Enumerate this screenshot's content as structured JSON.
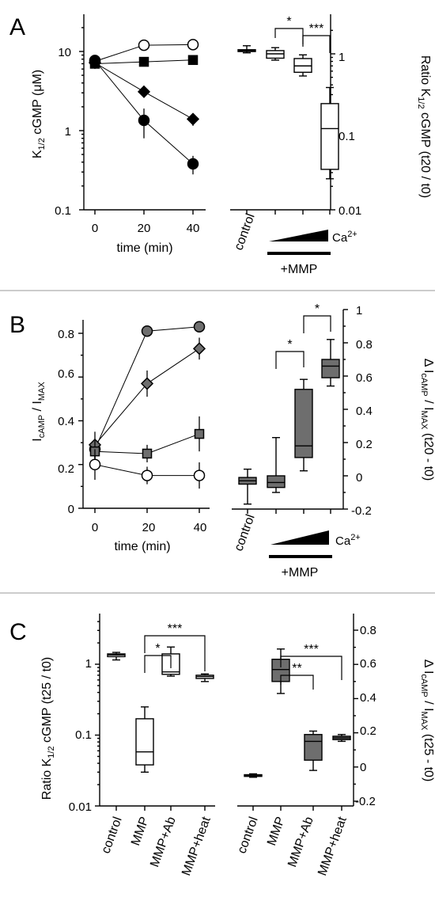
{
  "panels": {
    "A": {
      "letter": "A",
      "left": {
        "ylabel_main": "K",
        "ylabel_sub": "1/2",
        "ylabel_rest": " cGMP (μM)",
        "xlabel": "time (min)",
        "yticks": [
          "0.1",
          "1",
          "10"
        ],
        "xticks": [
          "0",
          "20",
          "40"
        ]
      },
      "right": {
        "ylabel_main": "Ratio K",
        "ylabel_sub": "1/2",
        "ylabel_rest": " cGMP (t20 / t0)",
        "yticks": [
          "0.01",
          "0.1",
          "1"
        ],
        "cat_control": "control",
        "ca_label": "Ca",
        "ca_sup": "2+",
        "mmp_label": "+MMP",
        "sig": [
          "*",
          "***"
        ]
      }
    },
    "B": {
      "letter": "B",
      "left": {
        "ylabel_main": "I",
        "ylabel_sub1": "cAMP",
        "ylabel_mid": " / I",
        "ylabel_sub2": "MAX",
        "xlabel": "time (min)",
        "yticks": [
          "0",
          "0.2",
          "0.4",
          "0.6",
          "0.8"
        ],
        "xticks": [
          "0",
          "20",
          "40"
        ]
      },
      "right": {
        "ylabel_main": "Δ I",
        "ylabel_sub1": "cAMP",
        "ylabel_mid": " / I",
        "ylabel_sub2": "MAX",
        "ylabel_rest": " (t20 - t0)",
        "yticks": [
          "-0.2",
          "0",
          "0.2",
          "0.4",
          "0.6",
          "0.8",
          "1"
        ],
        "cat_control": "control",
        "ca_label": "Ca",
        "ca_sup": "2+",
        "mmp_label": "+MMP",
        "sig": [
          "*",
          "*"
        ]
      }
    },
    "C": {
      "letter": "C",
      "left": {
        "ylabel_main": "Ratio K",
        "ylabel_sub": "1/2",
        "ylabel_rest": " cGMP (t25 / t0)",
        "yticks": [
          "0.01",
          "0.1",
          "1"
        ],
        "categories": [
          "control",
          "MMP",
          "MMP+Ab",
          "MMP+heat"
        ],
        "sig": [
          "*",
          "***"
        ]
      },
      "right": {
        "ylabel_main": "Δ I",
        "ylabel_sub1": "cAMP",
        "ylabel_mid": " / I",
        "ylabel_sub2": "MAX",
        "ylabel_rest": " (t25 - t0)",
        "yticks": [
          "-0.2",
          "0",
          "0.2",
          "0.4",
          "0.6",
          "0.8"
        ],
        "categories": [
          "control",
          "MMP",
          "MMP+Ab",
          "MMP+heat"
        ],
        "sig": [
          "**",
          "***"
        ]
      }
    }
  },
  "chart_data": [
    {
      "id": "A-left",
      "type": "line",
      "xlabel": "time (min)",
      "ylabel": "K1/2 cGMP (μM)",
      "yscale": "log",
      "ylim": [
        0.1,
        30
      ],
      "xlim": [
        -5,
        48
      ],
      "x": [
        0,
        20,
        40
      ],
      "series": [
        {
          "marker": "open-circle",
          "values": [
            7.5,
            12,
            12.2
          ],
          "err": [
            0.5,
            0.8,
            0.8
          ]
        },
        {
          "marker": "filled-square",
          "values": [
            7,
            7.4,
            7.8
          ],
          "err": [
            0.5,
            0.4,
            0.4
          ]
        },
        {
          "marker": "filled-diamond",
          "values": [
            7.2,
            3.1,
            1.4
          ],
          "err": [
            0.5,
            0.5,
            0.25
          ]
        },
        {
          "marker": "filled-circle",
          "values": [
            7.7,
            1.35,
            0.38
          ],
          "err": [
            0.6,
            0.55,
            0.1
          ]
        }
      ]
    },
    {
      "id": "A-right",
      "type": "box",
      "ylabel": "Ratio K1/2 cGMP (t20 / t0)",
      "yscale": "log",
      "ylim": [
        0.01,
        3.2
      ],
      "categories": [
        "control",
        "+MMP low Ca2+",
        "+MMP mid Ca2+",
        "+MMP high Ca2+"
      ],
      "boxes": [
        {
          "min": 1.03,
          "q1": 1.07,
          "median": 1.1,
          "q3": 1.13,
          "max": 1.27,
          "fill": "white"
        },
        {
          "min": 0.83,
          "q1": 0.88,
          "median": 1.0,
          "q3": 1.1,
          "max": 1.2,
          "fill": "white"
        },
        {
          "min": 0.52,
          "q1": 0.58,
          "median": 0.7,
          "q3": 0.87,
          "max": 0.97,
          "fill": "white"
        },
        {
          "min": 0.025,
          "q1": 0.033,
          "median": 0.11,
          "q3": 0.23,
          "max": 0.37,
          "fill": "white"
        }
      ]
    },
    {
      "id": "B-left",
      "type": "line",
      "xlabel": "time (min)",
      "ylabel": "IcAMP / IMAX",
      "ylim": [
        0,
        0.85
      ],
      "xlim": [
        -5,
        48
      ],
      "x": [
        0,
        20,
        40
      ],
      "series": [
        {
          "marker": "filled-circle-gray",
          "values": [
            0.27,
            0.81,
            0.83
          ],
          "err": [
            0.04,
            0.02,
            0.02
          ]
        },
        {
          "marker": "filled-diamond-gray",
          "values": [
            0.29,
            0.57,
            0.73
          ],
          "err": [
            0.06,
            0.06,
            0.05
          ]
        },
        {
          "marker": "filled-square-gray",
          "values": [
            0.26,
            0.25,
            0.34
          ],
          "err": [
            0.05,
            0.04,
            0.08
          ]
        },
        {
          "marker": "open-circle",
          "values": [
            0.2,
            0.15,
            0.15
          ],
          "err": [
            0.07,
            0.04,
            0.06
          ]
        }
      ]
    },
    {
      "id": "B-right",
      "type": "box",
      "ylabel": "Δ IcAMP / IMAX (t20 - t0)",
      "ylim": [
        -0.2,
        1
      ],
      "categories": [
        "control",
        "+MMP low Ca2+",
        "+MMP mid Ca2+",
        "+MMP high Ca2+"
      ],
      "boxes": [
        {
          "min": -0.17,
          "q1": -0.05,
          "median": -0.03,
          "q3": -0.01,
          "max": 0.04,
          "fill": "gray"
        },
        {
          "min": -0.1,
          "q1": -0.07,
          "median": -0.04,
          "q3": 0.0,
          "max": 0.23,
          "fill": "gray"
        },
        {
          "min": 0.03,
          "q1": 0.11,
          "median": 0.18,
          "q3": 0.52,
          "max": 0.58,
          "fill": "gray"
        },
        {
          "min": 0.54,
          "q1": 0.59,
          "median": 0.66,
          "q3": 0.7,
          "max": 0.82,
          "fill": "gray"
        }
      ]
    },
    {
      "id": "C-left",
      "type": "box",
      "ylabel": "Ratio K1/2 cGMP (t25 / t0)",
      "yscale": "log",
      "ylim": [
        0.01,
        4
      ],
      "categories": [
        "control",
        "MMP",
        "MMP+Ab",
        "MMP+heat"
      ],
      "boxes": [
        {
          "min": 1.15,
          "q1": 1.28,
          "median": 1.35,
          "q3": 1.4,
          "max": 1.47,
          "fill": "white"
        },
        {
          "min": 0.03,
          "q1": 0.038,
          "median": 0.058,
          "q3": 0.17,
          "max": 0.25,
          "fill": "white"
        },
        {
          "min": 0.68,
          "q1": 0.72,
          "median": 0.78,
          "q3": 1.4,
          "max": 1.75,
          "fill": "white"
        },
        {
          "min": 0.57,
          "q1": 0.63,
          "median": 0.67,
          "q3": 0.7,
          "max": 0.73,
          "fill": "white"
        }
      ]
    },
    {
      "id": "C-right",
      "type": "box",
      "ylabel": "Δ IcAMP / IMAX (t25 - t0)",
      "ylim": [
        -0.2,
        0.9
      ],
      "categories": [
        "control",
        "MMP",
        "MMP+Ab",
        "MMP+heat"
      ],
      "boxes": [
        {
          "min": -0.06,
          "q1": -0.055,
          "median": -0.05,
          "q3": -0.045,
          "max": -0.04,
          "fill": "gray"
        },
        {
          "min": 0.43,
          "q1": 0.5,
          "median": 0.57,
          "q3": 0.63,
          "max": 0.69,
          "fill": "gray"
        },
        {
          "min": -0.02,
          "q1": 0.04,
          "median": 0.15,
          "q3": 0.19,
          "max": 0.21,
          "fill": "gray"
        },
        {
          "min": 0.15,
          "q1": 0.16,
          "median": 0.17,
          "q3": 0.18,
          "max": 0.19,
          "fill": "gray"
        }
      ]
    }
  ]
}
